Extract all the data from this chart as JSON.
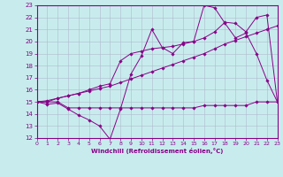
{
  "title": "",
  "xlabel": "Windchill (Refroidissement éolien,°C)",
  "ylabel": "",
  "xlim": [
    0,
    23
  ],
  "ylim": [
    12,
    23
  ],
  "yticks": [
    12,
    13,
    14,
    15,
    16,
    17,
    18,
    19,
    20,
    21,
    22,
    23
  ],
  "xticks": [
    0,
    1,
    2,
    3,
    4,
    5,
    6,
    7,
    8,
    9,
    10,
    11,
    12,
    13,
    14,
    15,
    16,
    17,
    18,
    19,
    20,
    21,
    22,
    23
  ],
  "bg_color": "#c8eced",
  "line_color": "#880088",
  "grid_color": "#b0b8cc",
  "lines": [
    {
      "x": [
        0,
        1,
        2,
        3,
        4,
        5,
        6,
        7,
        8,
        9,
        10,
        11,
        12,
        13,
        14,
        15,
        16,
        17,
        18,
        19,
        20,
        21,
        22,
        23
      ],
      "y": [
        15.0,
        14.8,
        14.9,
        14.4,
        13.9,
        13.5,
        13.0,
        11.9,
        14.4,
        17.3,
        18.8,
        21.0,
        19.5,
        19.0,
        19.9,
        20.0,
        23.0,
        22.8,
        21.5,
        20.3,
        20.7,
        19.0,
        16.8,
        15.0
      ]
    },
    {
      "x": [
        0,
        1,
        2,
        3,
        4,
        5,
        6,
        7,
        8,
        9,
        10,
        11,
        12,
        13,
        14,
        15,
        16,
        17,
        18,
        19,
        20,
        21,
        22,
        23
      ],
      "y": [
        15.0,
        15.0,
        15.3,
        15.5,
        15.7,
        16.0,
        16.3,
        16.5,
        18.4,
        19.0,
        19.2,
        19.4,
        19.5,
        19.6,
        19.8,
        20.0,
        20.3,
        20.8,
        21.6,
        21.5,
        20.8,
        22.0,
        22.2,
        15.0
      ]
    },
    {
      "x": [
        0,
        1,
        2,
        3,
        4,
        5,
        6,
        7,
        8,
        9,
        10,
        11,
        12,
        13,
        14,
        15,
        16,
        17,
        18,
        19,
        20,
        21,
        22,
        23
      ],
      "y": [
        15.0,
        15.0,
        15.0,
        14.5,
        14.5,
        14.5,
        14.5,
        14.5,
        14.5,
        14.5,
        14.5,
        14.5,
        14.5,
        14.5,
        14.5,
        14.5,
        14.7,
        14.7,
        14.7,
        14.7,
        14.7,
        15.0,
        15.0,
        15.0
      ]
    },
    {
      "x": [
        0,
        1,
        2,
        3,
        4,
        5,
        6,
        7,
        8,
        9,
        10,
        11,
        12,
        13,
        14,
        15,
        16,
        17,
        18,
        19,
        20,
        21,
        22,
        23
      ],
      "y": [
        15.0,
        15.1,
        15.3,
        15.5,
        15.7,
        15.9,
        16.1,
        16.3,
        16.6,
        16.9,
        17.2,
        17.5,
        17.8,
        18.1,
        18.4,
        18.7,
        19.0,
        19.4,
        19.8,
        20.1,
        20.4,
        20.7,
        21.0,
        21.3
      ]
    }
  ]
}
